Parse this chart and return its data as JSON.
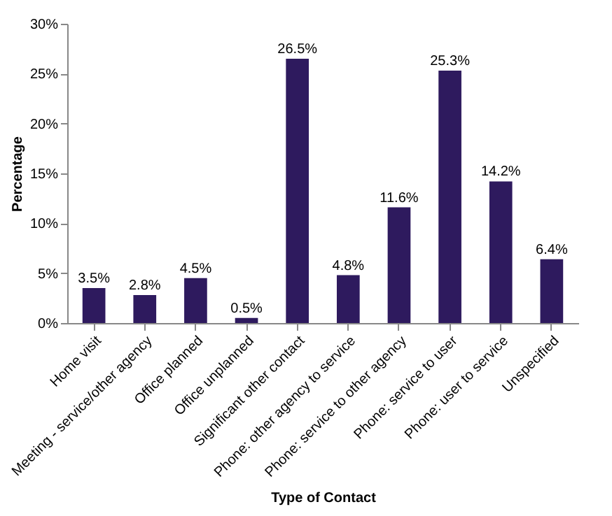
{
  "chart_data": {
    "type": "bar",
    "xlabel": "Type of Contact",
    "ylabel": "Percentage",
    "categories": [
      "Home visit",
      "Meeting - service/other agency",
      "Office planned",
      "Office unplanned",
      "Significant other contact",
      "Phone: other agency to service",
      "Phone: service to other agency",
      "Phone: service to user",
      "Phone: user to service",
      "Unspecified"
    ],
    "values": [
      3.5,
      2.8,
      4.5,
      0.5,
      26.5,
      4.8,
      11.6,
      25.3,
      14.2,
      6.4
    ],
    "value_labels": [
      "3.5%",
      "2.8%",
      "4.5%",
      "0.5%",
      "26.5%",
      "4.8%",
      "11.6%",
      "25.3%",
      "14.2%",
      "6.4%"
    ],
    "color": "#2e1a5e",
    "ylim": [
      0,
      30
    ],
    "yticks": [
      {
        "value": 0,
        "label": "0%"
      },
      {
        "value": 5,
        "label": "5%"
      },
      {
        "value": 10,
        "label": "10%"
      },
      {
        "value": 15,
        "label": "15%"
      },
      {
        "value": 20,
        "label": "20%"
      },
      {
        "value": 25,
        "label": "25%"
      },
      {
        "value": 30,
        "label": "30%"
      }
    ],
    "grid": false
  }
}
